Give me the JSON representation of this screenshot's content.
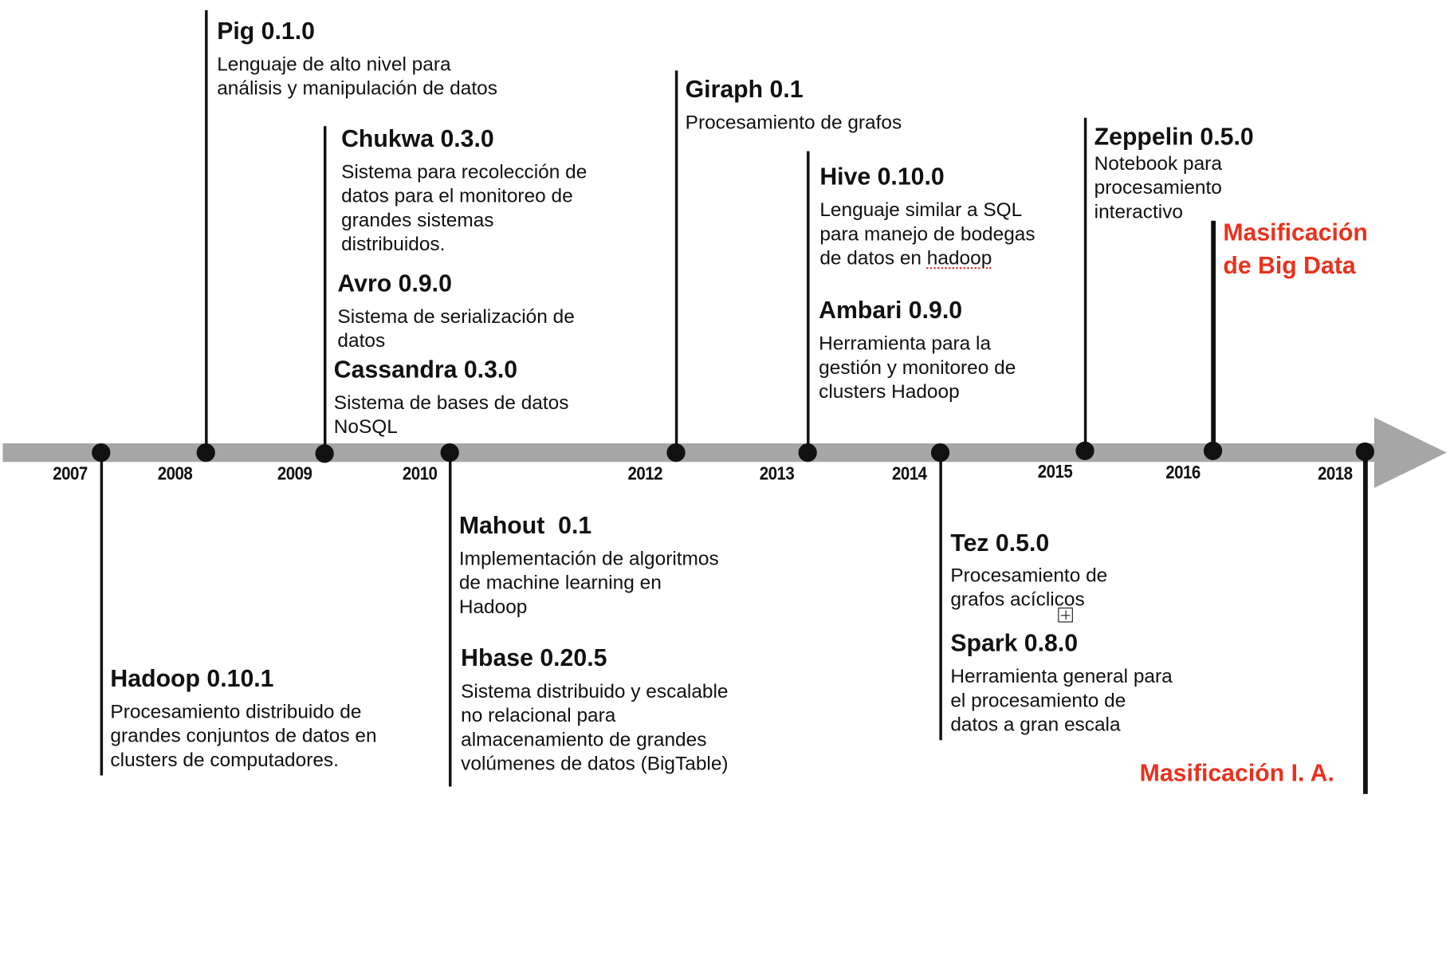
{
  "years": [
    "2007",
    "2008",
    "2009",
    "2010",
    "2012",
    "2013",
    "2014",
    "2015",
    "2016",
    "2018"
  ],
  "events": {
    "pig": {
      "title": "Pig 0.1.0",
      "desc_lines": [
        "Lenguaje de alto nivel para",
        "análisis y manipulación de datos"
      ]
    },
    "chukwa": {
      "title": "Chukwa 0.3.0",
      "desc_lines": [
        "Sistema para recolección de",
        "datos para el monitoreo de",
        "grandes sistemas",
        "distribuidos."
      ]
    },
    "avro": {
      "title": "Avro 0.9.0",
      "desc_lines": [
        "Sistema de serialización de",
        "datos"
      ]
    },
    "cassandra": {
      "title": "Cassandra 0.3.0",
      "desc_lines": [
        "Sistema de bases de datos",
        "NoSQL"
      ]
    },
    "giraph": {
      "title": "Giraph 0.1",
      "desc_lines": [
        "Procesamiento de grafos"
      ]
    },
    "hive": {
      "title": "Hive 0.10.0",
      "desc_lines": [
        "Lenguaje similar a SQL",
        "para manejo de bodegas"
      ],
      "desc_line3_prefix": "de datos en ",
      "desc_line3_word": "hadoop"
    },
    "ambari": {
      "title": "Ambari 0.9.0",
      "desc_lines": [
        "Herramienta para la",
        "gestión y monitoreo de",
        "clusters Hadoop"
      ]
    },
    "zeppelin": {
      "title": "Zeppelin 0.5.0",
      "desc_lines": [
        "Notebook para",
        "procesamiento",
        "interactivo"
      ]
    },
    "hadoop": {
      "title": "Hadoop 0.10.1",
      "desc_lines": [
        "Procesamiento distribuido de",
        "grandes conjuntos de datos en",
        "clusters de computadores."
      ]
    },
    "mahout": {
      "title": "Mahout  0.1",
      "desc_lines": [
        "Implementación de algoritmos",
        "de machine learning en",
        "Hadoop"
      ]
    },
    "hbase": {
      "title": "Hbase 0.20.5",
      "desc_lines": [
        "Sistema distribuido y escalable",
        "no relacional para",
        "almacenamiento de grandes",
        "volúmenes de datos (BigTable)"
      ]
    },
    "tez": {
      "title": "Tez 0.5.0",
      "desc_lines": [
        "Procesamiento de",
        "grafos acíclicos"
      ]
    },
    "spark": {
      "title": "Spark 0.8.0",
      "desc_lines": [
        "Herramienta general para",
        "el procesamiento de",
        "datos a gran escala"
      ]
    }
  },
  "milestones": {
    "big_data": [
      "Masificación",
      "de Big Data"
    ],
    "ia": "Masificación I. A."
  },
  "colors": {
    "axis": "#a6a6a6",
    "ink": "#111111",
    "highlight": "#e8321e"
  },
  "icons": {
    "cursor": "move-cursor-icon"
  }
}
